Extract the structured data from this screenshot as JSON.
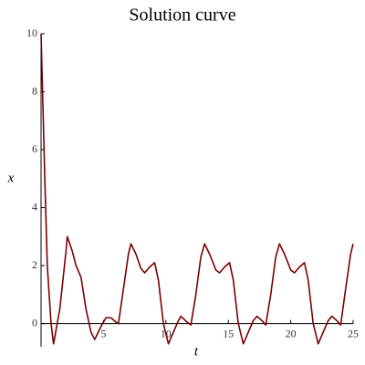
{
  "chart_data": {
    "type": "line",
    "title": "Solution curve",
    "x_label": "t",
    "y_label": "x",
    "x": [
      0,
      0.3,
      0.5,
      0.8,
      1.0,
      1.5,
      2.0,
      2.1,
      2.5,
      2.8,
      3.2,
      3.6,
      4.0,
      4.3,
      4.8,
      5.2,
      5.6,
      6.0,
      6.2,
      6.6,
      7.0,
      7.2,
      7.6,
      8.0,
      8.3,
      8.7,
      9.1,
      9.4,
      9.8,
      10.2,
      10.6,
      11.0,
      11.2,
      11.7,
      12.0,
      12.4,
      12.8,
      13.1,
      13.5,
      14.0,
      14.3,
      14.7,
      15.1,
      15.4,
      15.8,
      16.2,
      16.6,
      17.0,
      17.3,
      17.7,
      18.0,
      18.4,
      18.8,
      19.1,
      19.5,
      20.0,
      20.3,
      20.7,
      21.1,
      21.4,
      21.8,
      22.2,
      22.6,
      23.0,
      23.3,
      23.7,
      24.0,
      24.4,
      24.8,
      25.0
    ],
    "series": [
      {
        "color": "#7a0000",
        "values": [
          10,
          5,
          2,
          0,
          -0.7,
          0.5,
          2.5,
          3.0,
          2.5,
          2.0,
          1.6,
          0.5,
          -0.3,
          -0.55,
          -0.1,
          0.2,
          0.2,
          0.05,
          0,
          1.2,
          2.4,
          2.75,
          2.4,
          1.9,
          1.75,
          1.95,
          2.1,
          1.5,
          0,
          -0.7,
          -0.3,
          0.1,
          0.25,
          0.05,
          -0.05,
          1.0,
          2.3,
          2.75,
          2.4,
          1.85,
          1.75,
          1.95,
          2.1,
          1.5,
          0,
          -0.7,
          -0.3,
          0.1,
          0.25,
          0.1,
          -0.05,
          1.0,
          2.3,
          2.75,
          2.4,
          1.85,
          1.75,
          1.95,
          2.1,
          1.5,
          0,
          -0.7,
          -0.3,
          0.1,
          0.25,
          0.1,
          -0.05,
          1.2,
          2.4,
          2.75
        ]
      }
    ],
    "xlim": [
      0,
      25
    ],
    "ylim": [
      -0.8,
      10
    ],
    "xticks": [
      5,
      10,
      15,
      20,
      25
    ],
    "yticks": [
      0,
      2,
      4,
      6,
      8,
      10
    ]
  }
}
